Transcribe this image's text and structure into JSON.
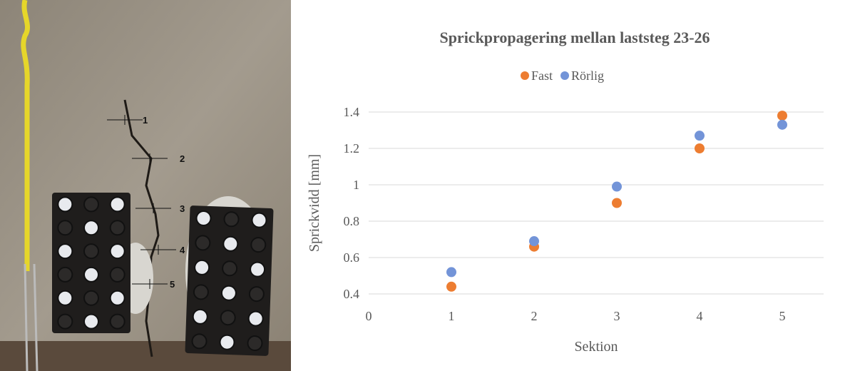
{
  "photo": {
    "labels": [
      "1",
      "2",
      "3",
      "4",
      "5"
    ]
  },
  "chart_data": {
    "type": "scatter",
    "title": "Sprickpropagering mellan laststeg 23-26",
    "x_label": "Sektion",
    "y_label": "Sprickvidd [mm]",
    "x": [
      1,
      2,
      3,
      4,
      5
    ],
    "series": [
      {
        "name": "Fast",
        "color": "#ed7d31",
        "values": [
          0.44,
          0.66,
          0.9,
          1.2,
          1.38
        ]
      },
      {
        "name": "Rörlig",
        "color": "#7394d8",
        "values": [
          0.52,
          0.69,
          0.99,
          1.27,
          1.33
        ]
      }
    ],
    "xlim": [
      0,
      5.5
    ],
    "xticks": [
      0,
      1,
      2,
      3,
      4,
      5
    ],
    "ylim": [
      0.4,
      1.4
    ],
    "yticks": [
      0.4,
      0.6,
      0.8,
      1,
      1.2,
      1.4
    ],
    "grid": true,
    "legend": "top"
  }
}
